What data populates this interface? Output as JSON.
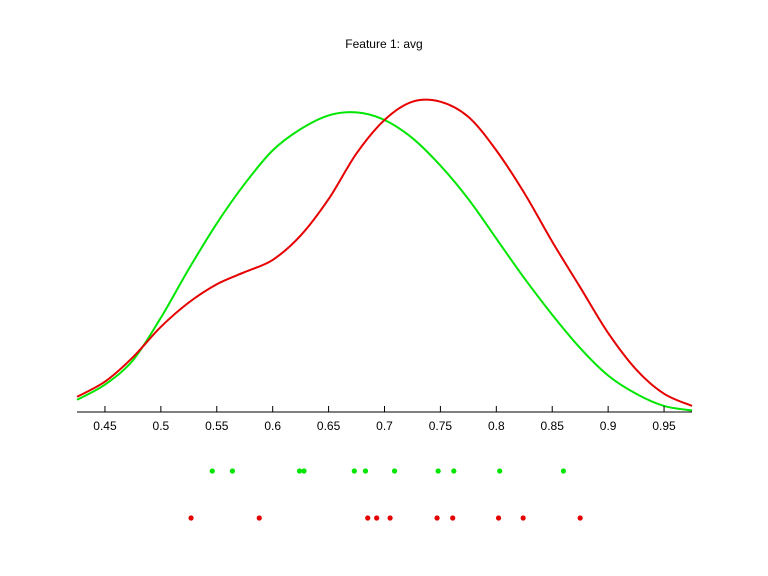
{
  "chart_data": {
    "type": "line",
    "title": "Feature 1: avg",
    "xlabel": "",
    "ylabel": "",
    "xlim": [
      0.425,
      0.975
    ],
    "ylim": [
      0,
      1
    ],
    "grid": false,
    "x_ticks": [
      "0.45",
      "0.5",
      "0.55",
      "0.6",
      "0.65",
      "0.7",
      "0.75",
      "0.8",
      "0.85",
      "0.9",
      "0.95"
    ],
    "series": [
      {
        "color": "#00e600",
        "x": [
          0.425,
          0.45,
          0.475,
          0.5,
          0.525,
          0.55,
          0.575,
          0.6,
          0.625,
          0.65,
          0.675,
          0.7,
          0.725,
          0.75,
          0.775,
          0.8,
          0.825,
          0.85,
          0.875,
          0.9,
          0.925,
          0.95,
          0.975
        ],
        "y": [
          0.04,
          0.09,
          0.17,
          0.31,
          0.47,
          0.62,
          0.75,
          0.86,
          0.93,
          0.975,
          0.985,
          0.96,
          0.9,
          0.81,
          0.7,
          0.57,
          0.44,
          0.32,
          0.21,
          0.12,
          0.06,
          0.02,
          0.005
        ]
      },
      {
        "color": "#e60000",
        "x": [
          0.425,
          0.45,
          0.475,
          0.5,
          0.525,
          0.55,
          0.575,
          0.6,
          0.625,
          0.65,
          0.675,
          0.7,
          0.725,
          0.75,
          0.775,
          0.8,
          0.825,
          0.85,
          0.875,
          0.9,
          0.925,
          0.95,
          0.975
        ],
        "y": [
          0.05,
          0.1,
          0.18,
          0.28,
          0.36,
          0.42,
          0.46,
          0.5,
          0.58,
          0.7,
          0.85,
          0.96,
          1.02,
          1.02,
          0.97,
          0.86,
          0.72,
          0.56,
          0.41,
          0.26,
          0.14,
          0.06,
          0.02
        ]
      }
    ],
    "rugs": [
      {
        "color": "#00e600",
        "values": [
          0.546,
          0.564,
          0.624,
          0.628,
          0.673,
          0.683,
          0.709,
          0.748,
          0.762,
          0.803,
          0.86
        ]
      },
      {
        "color": "#e60000",
        "values": [
          0.527,
          0.588,
          0.685,
          0.693,
          0.705,
          0.747,
          0.761,
          0.802,
          0.824,
          0.875
        ]
      }
    ]
  }
}
